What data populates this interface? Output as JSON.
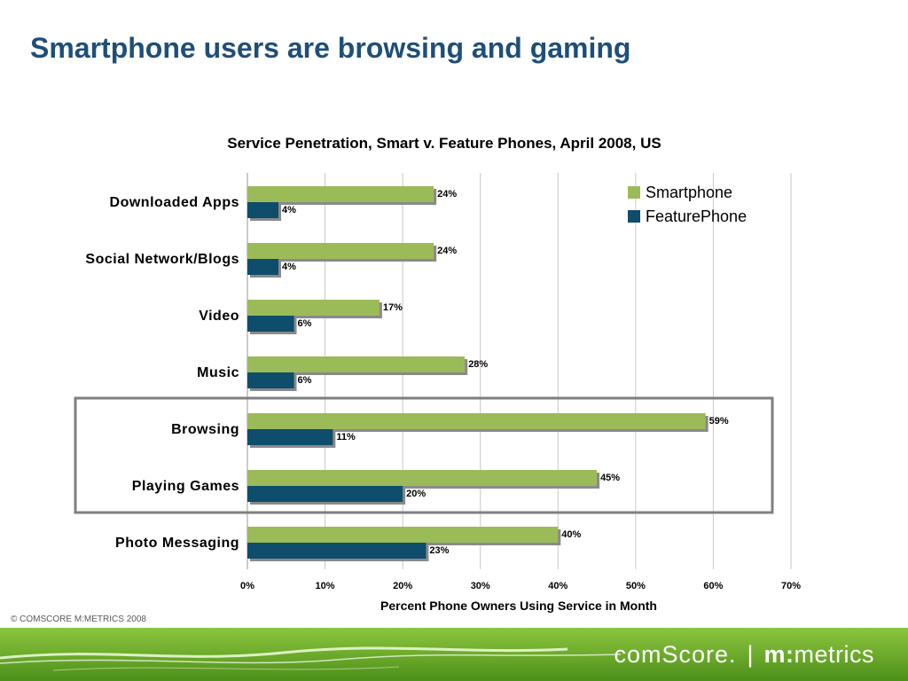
{
  "slide": {
    "title": "Smartphone users are browsing and gaming",
    "copyright": "© COMSCORE M:METRICS 2008"
  },
  "footer": {
    "logo_left": "comScore.",
    "logo_divider": "|",
    "logo_right_bold": "m:",
    "logo_right": "metrics"
  },
  "colors": {
    "smartphone": "#9bbb59",
    "featurephone": "#0e4d6b",
    "title": "#1f4e79",
    "highlight_box": "#7f7f7f"
  },
  "chart_data": {
    "type": "bar",
    "orientation": "horizontal",
    "title": "Service Penetration, Smart v. Feature Phones, April 2008, US",
    "xlabel": "Percent Phone Owners Using Service in Month",
    "ylabel": "",
    "categories": [
      "Downloaded Apps",
      "Social Network/Blogs",
      "Video",
      "Music",
      "Browsing",
      "Playing Games",
      "Photo Messaging"
    ],
    "series": [
      {
        "name": "Smartphone",
        "values": [
          24,
          24,
          17,
          28,
          59,
          45,
          40
        ],
        "labels": [
          "24%",
          "24%",
          "17%",
          "28%",
          "59%",
          "45%",
          "40%"
        ]
      },
      {
        "name": "FeaturePhone",
        "values": [
          4,
          4,
          6,
          6,
          11,
          20,
          23
        ],
        "labels": [
          "4%",
          "4%",
          "6%",
          "6%",
          "11%",
          "20%",
          "23%"
        ]
      }
    ],
    "xlim": [
      0,
      70
    ],
    "xticks": [
      0,
      10,
      20,
      30,
      40,
      50,
      60,
      70
    ],
    "xtick_labels": [
      "0%",
      "10%",
      "20%",
      "30%",
      "40%",
      "50%",
      "60%",
      "70%"
    ],
    "grid": true,
    "legend": "top-right",
    "highlighted_categories": [
      "Browsing",
      "Playing Games"
    ]
  }
}
